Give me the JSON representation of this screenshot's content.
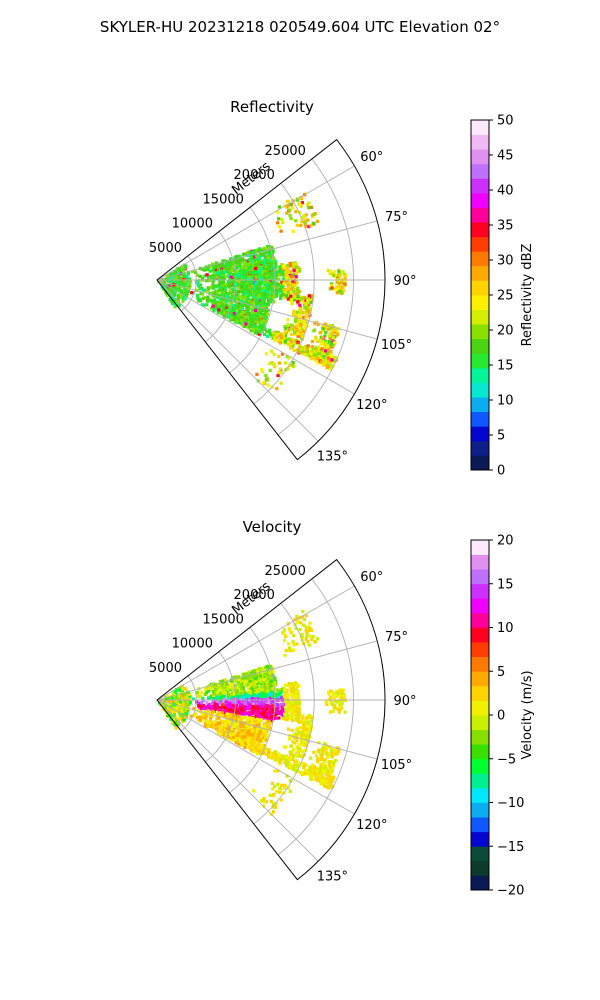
{
  "figure": {
    "title": "SKYLER-HU  20231218  020549.604 UTC Elevation 02°"
  },
  "chart_data": [
    {
      "type": "heatmap",
      "title": "Reflectivity",
      "radial_label": "Meters",
      "range_ticks": [
        5000,
        10000,
        15000,
        20000,
        25000
      ],
      "range_tick_labels": [
        "5000",
        "10000",
        "15000",
        "20000",
        "25000"
      ],
      "rmax": 29000,
      "azimuth_range_deg": [
        52,
        142
      ],
      "azimuth_ticks": [
        60,
        75,
        90,
        105,
        120,
        135
      ],
      "azimuth_tick_labels": [
        "60°",
        "75°",
        "90°",
        "105°",
        "120°",
        "135°"
      ],
      "grid": true,
      "colorbar": {
        "label": "Reflectivity dBZ",
        "range": [
          0,
          50
        ],
        "ticks": [
          0,
          5,
          10,
          15,
          20,
          25,
          30,
          35,
          40,
          45,
          50
        ],
        "tick_labels": [
          "0",
          "5",
          "10",
          "15",
          "20",
          "25",
          "30",
          "35",
          "40",
          "45",
          "50"
        ],
        "colors": [
          "#0a1a55",
          "#0d1f86",
          "#0505d0",
          "#0f58ff",
          "#0cacf0",
          "#08e8d0",
          "#05f59a",
          "#28e830",
          "#4ad412",
          "#8ae000",
          "#d4ee00",
          "#fff000",
          "#ffd400",
          "#ffaa00",
          "#ff7a00",
          "#ff3d00",
          "#ff0020",
          "#ff0098",
          "#f000ff",
          "#cc30ff",
          "#c070ff",
          "#e090ee",
          "#f0b8f4",
          "#fde8fc"
        ]
      }
    },
    {
      "type": "heatmap",
      "title": "Velocity",
      "radial_label": "Meters",
      "range_ticks": [
        5000,
        10000,
        15000,
        20000,
        25000
      ],
      "range_tick_labels": [
        "5000",
        "10000",
        "15000",
        "20000",
        "25000"
      ],
      "rmax": 29000,
      "azimuth_range_deg": [
        52,
        142
      ],
      "azimuth_ticks": [
        60,
        75,
        90,
        105,
        120,
        135
      ],
      "azimuth_tick_labels": [
        "60°",
        "75°",
        "90°",
        "105°",
        "120°",
        "135°"
      ],
      "grid": true,
      "colorbar": {
        "label": "Velocity (m/s)",
        "range": [
          -20,
          20
        ],
        "ticks": [
          -20,
          -15,
          -10,
          -5,
          0,
          5,
          10,
          15,
          20
        ],
        "tick_labels": [
          "−20",
          "−15",
          "−10",
          "−5",
          "0",
          "5",
          "10",
          "15",
          "20"
        ],
        "colors": [
          "#0a1a55",
          "#0d3a2a",
          "#0c4a3a",
          "#0505d0",
          "#0f58ff",
          "#0cacf0",
          "#00e8ff",
          "#00f090",
          "#00ff30",
          "#3ae000",
          "#88e000",
          "#c8f000",
          "#f0f000",
          "#ffd400",
          "#ffaa00",
          "#ff7a00",
          "#ff3d00",
          "#ff0020",
          "#ff0098",
          "#f000ff",
          "#cc30ff",
          "#c070ff",
          "#e090ee",
          "#fde8fc"
        ]
      }
    }
  ]
}
